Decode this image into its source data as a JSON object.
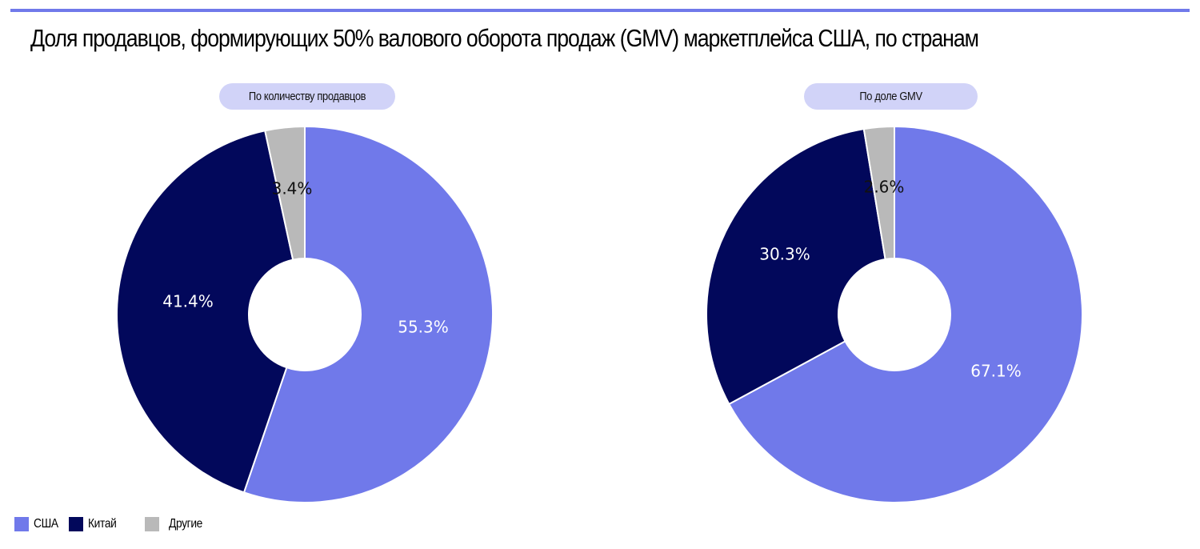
{
  "title": "Доля продавцов, формирующих 50% валового оборота продаж (GMV) маркетплейса США, по странам",
  "colors": {
    "usa": "#7079ea",
    "china": "#02085b",
    "other": "#b9b9b9",
    "pill_bg": "#d1d3f8",
    "rule": "#7079ea"
  },
  "panels": [
    {
      "label": "По количеству продавцов"
    },
    {
      "label": "По доле GMV"
    }
  ],
  "legend": [
    {
      "label": "США",
      "color": "#7079ea"
    },
    {
      "label": "Китай",
      "color": "#02085b"
    },
    {
      "label": "Другие",
      "color": "#b9b9b9"
    }
  ],
  "chart_data": [
    {
      "type": "pie",
      "subtype": "donut",
      "title": "По количеству продавцов",
      "categories": [
        "США",
        "Китай",
        "Другие"
      ],
      "values": [
        55.3,
        41.4,
        3.4
      ],
      "labels": [
        "55.3%",
        "41.4%",
        "3.4%"
      ],
      "colors": [
        "#7079ea",
        "#02085b",
        "#b9b9b9"
      ],
      "start_angle": "12 o'clock, clockwise",
      "legend_position": "bottom-left"
    },
    {
      "type": "pie",
      "subtype": "donut",
      "title": "По доле GMV",
      "categories": [
        "США",
        "Китай",
        "Другие"
      ],
      "values": [
        67.1,
        30.3,
        2.6
      ],
      "labels": [
        "67.1%",
        "30.3%",
        "2.6%"
      ],
      "colors": [
        "#7079ea",
        "#02085b",
        "#b9b9b9"
      ],
      "start_angle": "12 o'clock, clockwise",
      "legend_position": "bottom-left"
    }
  ]
}
